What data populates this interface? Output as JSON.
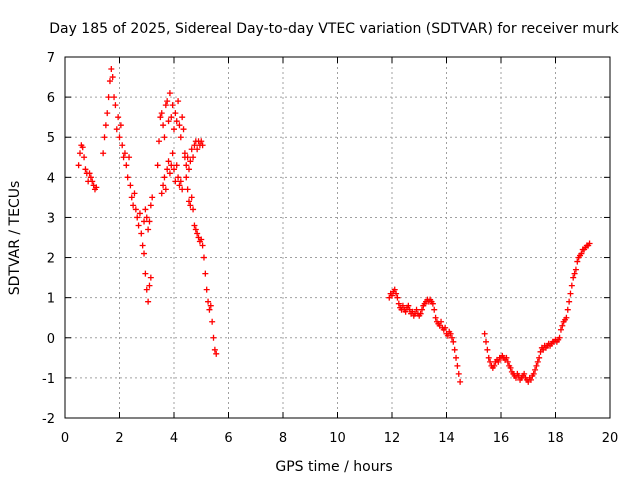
{
  "chart_data": {
    "type": "scatter",
    "title": "Day 185 of 2025, Sidereal Day-to-day VTEC variation (SDTVAR) for receiver murk",
    "xlabel": "GPS time / hours",
    "ylabel": "SDTVAR / TECUs",
    "xlim": [
      0,
      20
    ],
    "ylim": [
      -2,
      7
    ],
    "xticks": [
      0,
      2,
      4,
      6,
      8,
      10,
      12,
      14,
      16,
      18,
      20
    ],
    "yticks": [
      -2,
      -1,
      0,
      1,
      2,
      3,
      4,
      5,
      6,
      7
    ],
    "grid": true,
    "marker": "+",
    "series": [
      {
        "name": "SDTVAR",
        "color": "#ff0000",
        "points": [
          [
            0.5,
            4.3
          ],
          [
            0.55,
            4.6
          ],
          [
            0.6,
            4.8
          ],
          [
            0.65,
            4.75
          ],
          [
            0.7,
            4.5
          ],
          [
            0.75,
            4.2
          ],
          [
            0.8,
            4.1
          ],
          [
            0.85,
            3.9
          ],
          [
            0.9,
            4.1
          ],
          [
            0.95,
            4.0
          ],
          [
            1.0,
            3.9
          ],
          [
            1.05,
            3.8
          ],
          [
            1.1,
            3.7
          ],
          [
            1.15,
            3.75
          ],
          [
            1.4,
            4.6
          ],
          [
            1.45,
            5.0
          ],
          [
            1.5,
            5.3
          ],
          [
            1.55,
            5.6
          ],
          [
            1.6,
            6.0
          ],
          [
            1.65,
            6.4
          ],
          [
            1.7,
            6.7
          ],
          [
            1.75,
            6.5
          ],
          [
            1.8,
            6.0
          ],
          [
            1.85,
            5.8
          ],
          [
            1.9,
            5.2
          ],
          [
            1.95,
            5.5
          ],
          [
            2.0,
            5.0
          ],
          [
            2.05,
            5.3
          ],
          [
            2.1,
            4.8
          ],
          [
            2.15,
            4.5
          ],
          [
            2.2,
            4.6
          ],
          [
            2.25,
            4.3
          ],
          [
            2.3,
            4.0
          ],
          [
            2.35,
            4.5
          ],
          [
            2.4,
            3.8
          ],
          [
            2.45,
            3.5
          ],
          [
            2.5,
            3.3
          ],
          [
            2.55,
            3.6
          ],
          [
            2.6,
            3.2
          ],
          [
            2.65,
            3.0
          ],
          [
            2.7,
            2.8
          ],
          [
            2.75,
            3.1
          ],
          [
            2.8,
            2.6
          ],
          [
            2.85,
            2.3
          ],
          [
            2.9,
            2.1
          ],
          [
            2.95,
            1.6
          ],
          [
            3.0,
            1.2
          ],
          [
            3.05,
            0.9
          ],
          [
            3.1,
            1.3
          ],
          [
            3.15,
            1.5
          ],
          [
            2.9,
            2.9
          ],
          [
            2.95,
            3.2
          ],
          [
            3.0,
            3.0
          ],
          [
            3.05,
            2.7
          ],
          [
            3.1,
            2.9
          ],
          [
            3.15,
            3.3
          ],
          [
            3.2,
            3.5
          ],
          [
            3.4,
            4.3
          ],
          [
            3.45,
            4.9
          ],
          [
            3.5,
            5.5
          ],
          [
            3.55,
            5.6
          ],
          [
            3.6,
            5.3
          ],
          [
            3.65,
            5.0
          ],
          [
            3.7,
            5.8
          ],
          [
            3.75,
            5.9
          ],
          [
            3.8,
            5.4
          ],
          [
            3.85,
            6.1
          ],
          [
            3.9,
            5.5
          ],
          [
            3.95,
            5.8
          ],
          [
            4.0,
            5.2
          ],
          [
            4.05,
            5.6
          ],
          [
            4.1,
            5.4
          ],
          [
            4.15,
            5.9
          ],
          [
            4.2,
            5.3
          ],
          [
            4.25,
            5.0
          ],
          [
            4.3,
            5.5
          ],
          [
            4.35,
            5.2
          ],
          [
            4.4,
            4.5
          ],
          [
            4.45,
            4.0
          ],
          [
            4.5,
            3.7
          ],
          [
            4.55,
            3.4
          ],
          [
            4.6,
            3.3
          ],
          [
            4.65,
            3.5
          ],
          [
            4.7,
            3.2
          ],
          [
            4.75,
            2.8
          ],
          [
            3.55,
            3.6
          ],
          [
            3.6,
            3.8
          ],
          [
            3.65,
            4.0
          ],
          [
            3.7,
            3.7
          ],
          [
            3.75,
            4.2
          ],
          [
            3.8,
            4.4
          ],
          [
            3.85,
            4.1
          ],
          [
            3.9,
            4.3
          ],
          [
            3.95,
            4.6
          ],
          [
            4.0,
            4.2
          ],
          [
            4.05,
            3.9
          ],
          [
            4.1,
            4.3
          ],
          [
            4.15,
            4.0
          ],
          [
            4.2,
            3.8
          ],
          [
            4.25,
            3.9
          ],
          [
            4.3,
            3.7
          ],
          [
            4.4,
            4.6
          ],
          [
            4.45,
            4.3
          ],
          [
            4.5,
            4.5
          ],
          [
            4.55,
            4.2
          ],
          [
            4.6,
            4.4
          ],
          [
            4.65,
            4.7
          ],
          [
            4.7,
            4.5
          ],
          [
            4.75,
            4.8
          ],
          [
            4.8,
            4.9
          ],
          [
            4.85,
            4.7
          ],
          [
            4.9,
            4.9
          ],
          [
            4.95,
            4.8
          ],
          [
            5.0,
            4.9
          ],
          [
            5.05,
            4.8
          ],
          [
            4.8,
            2.7
          ],
          [
            4.85,
            2.6
          ],
          [
            4.9,
            2.5
          ],
          [
            4.95,
            2.4
          ],
          [
            5.0,
            2.45
          ],
          [
            5.05,
            2.3
          ],
          [
            5.1,
            2.0
          ],
          [
            5.15,
            1.6
          ],
          [
            5.2,
            1.2
          ],
          [
            5.25,
            0.9
          ],
          [
            5.3,
            0.7
          ],
          [
            5.35,
            0.8
          ],
          [
            5.4,
            0.4
          ],
          [
            5.45,
            0.0
          ],
          [
            5.5,
            -0.3
          ],
          [
            5.55,
            -0.4
          ],
          [
            11.9,
            1.0
          ],
          [
            11.95,
            1.1
          ],
          [
            12.0,
            1.05
          ],
          [
            12.05,
            1.15
          ],
          [
            12.1,
            1.2
          ],
          [
            12.15,
            1.1
          ],
          [
            12.2,
            1.0
          ],
          [
            12.25,
            0.85
          ],
          [
            12.3,
            0.75
          ],
          [
            12.35,
            0.7
          ],
          [
            12.4,
            0.8
          ],
          [
            12.45,
            0.7
          ],
          [
            12.5,
            0.65
          ],
          [
            12.55,
            0.75
          ],
          [
            12.6,
            0.8
          ],
          [
            12.65,
            0.7
          ],
          [
            12.7,
            0.6
          ],
          [
            12.75,
            0.65
          ],
          [
            12.8,
            0.55
          ],
          [
            12.85,
            0.6
          ],
          [
            12.9,
            0.7
          ],
          [
            12.95,
            0.6
          ],
          [
            13.0,
            0.55
          ],
          [
            13.05,
            0.6
          ],
          [
            13.1,
            0.7
          ],
          [
            13.15,
            0.8
          ],
          [
            13.2,
            0.85
          ],
          [
            13.25,
            0.9
          ],
          [
            13.3,
            0.95
          ],
          [
            13.35,
            0.9
          ],
          [
            13.4,
            0.95
          ],
          [
            13.45,
            0.9
          ],
          [
            13.5,
            0.85
          ],
          [
            13.55,
            0.7
          ],
          [
            13.6,
            0.5
          ],
          [
            13.65,
            0.4
          ],
          [
            13.7,
            0.35
          ],
          [
            13.75,
            0.3
          ],
          [
            13.8,
            0.4
          ],
          [
            13.85,
            0.25
          ],
          [
            13.9,
            0.2
          ],
          [
            13.95,
            0.25
          ],
          [
            14.0,
            0.1
          ],
          [
            14.05,
            0.05
          ],
          [
            14.1,
            0.15
          ],
          [
            14.15,
            0.1
          ],
          [
            14.2,
            0.0
          ],
          [
            14.25,
            -0.1
          ],
          [
            14.3,
            -0.3
          ],
          [
            14.35,
            -0.5
          ],
          [
            14.4,
            -0.7
          ],
          [
            14.45,
            -0.9
          ],
          [
            14.5,
            -1.1
          ],
          [
            15.4,
            0.1
          ],
          [
            15.45,
            -0.1
          ],
          [
            15.5,
            -0.3
          ],
          [
            15.55,
            -0.5
          ],
          [
            15.6,
            -0.6
          ],
          [
            15.65,
            -0.7
          ],
          [
            15.7,
            -0.75
          ],
          [
            15.75,
            -0.7
          ],
          [
            15.8,
            -0.6
          ],
          [
            15.85,
            -0.55
          ],
          [
            15.9,
            -0.6
          ],
          [
            15.95,
            -0.5
          ],
          [
            16.0,
            -0.5
          ],
          [
            16.05,
            -0.45
          ],
          [
            16.1,
            -0.5
          ],
          [
            16.15,
            -0.55
          ],
          [
            16.2,
            -0.5
          ],
          [
            16.25,
            -0.6
          ],
          [
            16.3,
            -0.7
          ],
          [
            16.35,
            -0.75
          ],
          [
            16.4,
            -0.85
          ],
          [
            16.45,
            -0.9
          ],
          [
            16.5,
            -0.95
          ],
          [
            16.55,
            -1.0
          ],
          [
            16.6,
            -0.9
          ],
          [
            16.65,
            -0.95
          ],
          [
            16.7,
            -1.05
          ],
          [
            16.75,
            -1.0
          ],
          [
            16.8,
            -0.95
          ],
          [
            16.85,
            -0.9
          ],
          [
            16.9,
            -1.0
          ],
          [
            16.95,
            -1.05
          ],
          [
            17.0,
            -1.1
          ],
          [
            17.05,
            -1.0
          ],
          [
            17.1,
            -1.05
          ],
          [
            17.15,
            -0.95
          ],
          [
            17.2,
            -0.9
          ],
          [
            17.25,
            -0.8
          ],
          [
            17.3,
            -0.7
          ],
          [
            17.35,
            -0.6
          ],
          [
            17.4,
            -0.5
          ],
          [
            17.45,
            -0.35
          ],
          [
            17.5,
            -0.25
          ],
          [
            17.55,
            -0.3
          ],
          [
            17.6,
            -0.2
          ],
          [
            17.65,
            -0.25
          ],
          [
            17.7,
            -0.2
          ],
          [
            17.75,
            -0.15
          ],
          [
            17.8,
            -0.2
          ],
          [
            17.85,
            -0.15
          ],
          [
            17.9,
            -0.1
          ],
          [
            17.95,
            -0.1
          ],
          [
            18.0,
            -0.05
          ],
          [
            18.05,
            -0.1
          ],
          [
            18.1,
            -0.05
          ],
          [
            18.15,
            0.0
          ],
          [
            18.2,
            0.2
          ],
          [
            18.25,
            0.3
          ],
          [
            18.3,
            0.4
          ],
          [
            18.35,
            0.45
          ],
          [
            18.4,
            0.5
          ],
          [
            18.45,
            0.7
          ],
          [
            18.5,
            0.9
          ],
          [
            18.55,
            1.1
          ],
          [
            18.6,
            1.3
          ],
          [
            18.65,
            1.5
          ],
          [
            18.7,
            1.6
          ],
          [
            18.75,
            1.7
          ],
          [
            18.8,
            1.9
          ],
          [
            18.85,
            2.0
          ],
          [
            18.9,
            2.05
          ],
          [
            18.95,
            2.1
          ],
          [
            19.0,
            2.2
          ],
          [
            19.05,
            2.2
          ],
          [
            19.1,
            2.25
          ],
          [
            19.15,
            2.3
          ],
          [
            19.2,
            2.3
          ],
          [
            19.25,
            2.35
          ]
        ]
      }
    ]
  }
}
